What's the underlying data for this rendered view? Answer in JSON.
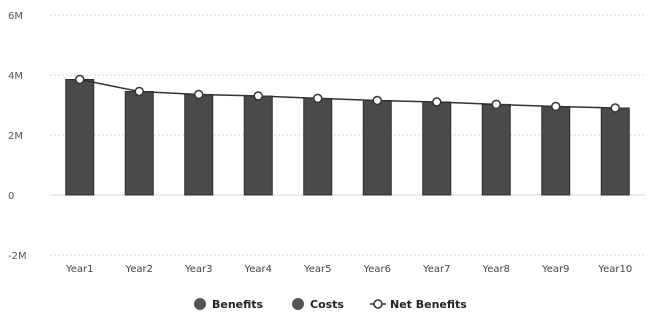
{
  "chart_data": {
    "type": "bar",
    "categories": [
      "Year1",
      "Year2",
      "Year3",
      "Year4",
      "Year5",
      "Year6",
      "Year7",
      "Year8",
      "Year9",
      "Year10"
    ],
    "series": [
      {
        "name": "Benefits",
        "kind": "bar",
        "values": [
          3.85,
          3.45,
          3.35,
          3.3,
          3.22,
          3.15,
          3.1,
          3.02,
          2.95,
          2.9
        ]
      },
      {
        "name": "Costs",
        "kind": "bar",
        "values": [
          0,
          0,
          0,
          0,
          0,
          0,
          0,
          0,
          0,
          0
        ]
      },
      {
        "name": "Net Benefits",
        "kind": "line",
        "values": [
          3.85,
          3.45,
          3.35,
          3.3,
          3.22,
          3.15,
          3.1,
          3.02,
          2.95,
          2.9
        ]
      }
    ],
    "y_ticks": [
      {
        "value": 6,
        "label": "6M"
      },
      {
        "value": 4,
        "label": "4M"
      },
      {
        "value": 2,
        "label": "2M"
      },
      {
        "value": 0,
        "label": "0"
      },
      {
        "value": -2,
        "label": "-2M"
      }
    ],
    "ylim": [
      -2,
      6
    ],
    "grid": true,
    "legend_position": "bottom",
    "colors": {
      "bar": "#4a4a4a",
      "bar_stroke": "#2e2e2e",
      "line": "#333333",
      "marker_fill": "#ffffff",
      "grid": "#d8d8d8",
      "legend_dot": "#555555"
    }
  }
}
